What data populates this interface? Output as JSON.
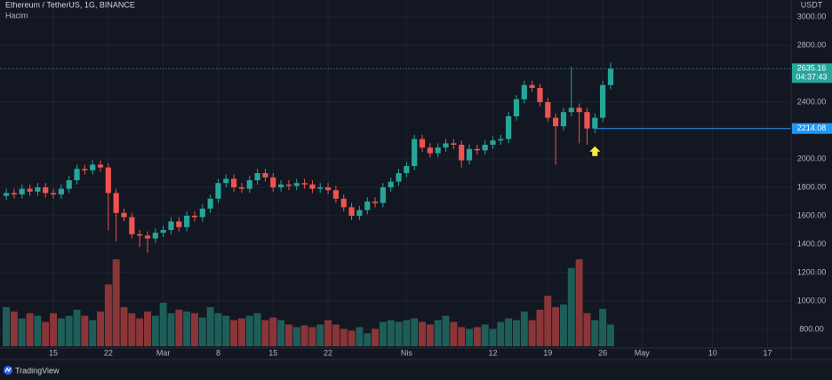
{
  "chart_data": {
    "type": "candlestick",
    "title": "Ethereum / TetherUS, 1G, BINANCE",
    "volume_label": "Hacim",
    "currency": "USDT",
    "brand": "TradingView",
    "up_color": "#26a69a",
    "down_color": "#ef5350",
    "volume_up_color": "#1e5e59",
    "volume_down_color": "#8a3538",
    "grid": true,
    "open": [
      1740,
      1760,
      1750,
      1790,
      1770,
      1800,
      1760,
      1750,
      1790,
      1850,
      1930,
      1920,
      1960,
      1940,
      1760,
      1620,
      1590,
      1470,
      1460,
      1440,
      1480,
      1500,
      1560,
      1520,
      1600,
      1590,
      1650,
      1720,
      1830,
      1860,
      1800,
      1790,
      1850,
      1900,
      1870,
      1800,
      1820,
      1810,
      1830,
      1820,
      1790,
      1800,
      1780,
      1720,
      1660,
      1600,
      1640,
      1700,
      1690,
      1800,
      1840,
      1900,
      1950,
      2140,
      2080,
      2040,
      2080,
      2110,
      2100,
      1990,
      2070,
      2060,
      2100,
      2130,
      2140,
      2300,
      2420,
      2520,
      2500,
      2400,
      2290,
      2230,
      2330,
      2360,
      2330,
      2214.08,
      2290,
      2520
    ],
    "high": [
      1790,
      1790,
      1820,
      1820,
      1830,
      1830,
      1790,
      1820,
      1880,
      1960,
      1960,
      1990,
      1990,
      1970,
      1790,
      1650,
      1620,
      1500,
      1490,
      1510,
      1530,
      1590,
      1590,
      1630,
      1630,
      1680,
      1750,
      1860,
      1890,
      1890,
      1830,
      1880,
      1930,
      1930,
      1900,
      1850,
      1850,
      1860,
      1860,
      1850,
      1830,
      1830,
      1810,
      1750,
      1690,
      1670,
      1730,
      1730,
      1830,
      1870,
      1930,
      1980,
      2170,
      2170,
      2110,
      2110,
      2140,
      2140,
      2130,
      2100,
      2100,
      2130,
      2160,
      2170,
      2330,
      2450,
      2550,
      2550,
      2530,
      2430,
      2320,
      2360,
      2650,
      2390,
      2360,
      2320,
      2550,
      2680
    ],
    "low": [
      1710,
      1720,
      1720,
      1740,
      1740,
      1730,
      1720,
      1720,
      1760,
      1820,
      1890,
      1890,
      1910,
      1500,
      1420,
      1560,
      1440,
      1380,
      1340,
      1410,
      1450,
      1470,
      1490,
      1490,
      1560,
      1560,
      1620,
      1690,
      1800,
      1770,
      1760,
      1760,
      1820,
      1840,
      1770,
      1770,
      1780,
      1780,
      1790,
      1760,
      1760,
      1750,
      1690,
      1630,
      1570,
      1570,
      1610,
      1660,
      1660,
      1770,
      1810,
      1870,
      1920,
      2050,
      2010,
      2010,
      2050,
      2070,
      1940,
      1960,
      2030,
      2030,
      2070,
      2100,
      2110,
      2270,
      2390,
      2470,
      2370,
      2260,
      1960,
      2200,
      2300,
      2110,
      2100,
      2180,
      2260,
      2490
    ],
    "close": [
      1760,
      1750,
      1790,
      1770,
      1800,
      1760,
      1750,
      1790,
      1850,
      1930,
      1920,
      1960,
      1940,
      1760,
      1620,
      1590,
      1470,
      1460,
      1440,
      1480,
      1500,
      1560,
      1520,
      1600,
      1590,
      1650,
      1720,
      1830,
      1860,
      1800,
      1790,
      1850,
      1900,
      1870,
      1800,
      1820,
      1810,
      1830,
      1820,
      1790,
      1800,
      1780,
      1720,
      1660,
      1600,
      1640,
      1700,
      1690,
      1800,
      1840,
      1900,
      1950,
      2140,
      2080,
      2040,
      2080,
      2110,
      2100,
      1990,
      2070,
      2060,
      2100,
      2130,
      2140,
      2300,
      2420,
      2520,
      2500,
      2400,
      2290,
      2230,
      2330,
      2360,
      2330,
      2214.08,
      2290,
      2520,
      2635.16
    ],
    "volume": [
      45,
      40,
      32,
      38,
      35,
      28,
      38,
      32,
      35,
      42,
      35,
      30,
      40,
      71,
      100,
      45,
      38,
      32,
      40,
      35,
      50,
      38,
      42,
      40,
      38,
      33,
      45,
      38,
      35,
      30,
      32,
      35,
      38,
      30,
      33,
      30,
      25,
      22,
      24,
      22,
      25,
      30,
      25,
      20,
      18,
      22,
      15,
      20,
      28,
      30,
      28,
      30,
      32,
      28,
      25,
      30,
      35,
      28,
      22,
      20,
      22,
      25,
      20,
      28,
      32,
      30,
      40,
      30,
      42,
      58,
      45,
      48,
      90,
      100,
      38,
      30,
      43,
      25
    ],
    "vlim": [
      0,
      100
    ],
    "xlim": [
      -0.8,
      100
    ],
    "ylim": [
      668.75,
      3118.75
    ],
    "yticks": [
      {
        "value": 800,
        "label": "800.00"
      },
      {
        "value": 1000,
        "label": "1000.00"
      },
      {
        "value": 1200,
        "label": "1200.00"
      },
      {
        "value": 1400,
        "label": "1400.00"
      },
      {
        "value": 1600,
        "label": "1600.00"
      },
      {
        "value": 1800,
        "label": "1800.00"
      },
      {
        "value": 2000,
        "label": "2000.00"
      },
      {
        "value": 2400,
        "label": "2400.00"
      },
      {
        "value": 2800,
        "label": "2800.00"
      },
      {
        "value": 3000,
        "label": "3000.00"
      }
    ],
    "xticks": [
      {
        "value": 6,
        "label": "15"
      },
      {
        "value": 13,
        "label": "22"
      },
      {
        "value": 20,
        "label": "Mar"
      },
      {
        "value": 27,
        "label": "8"
      },
      {
        "value": 34,
        "label": "15"
      },
      {
        "value": 41,
        "label": "22"
      },
      {
        "value": 51,
        "label": "Nis"
      },
      {
        "value": 62,
        "label": "12"
      },
      {
        "value": 69,
        "label": "19"
      },
      {
        "value": 76,
        "label": "26"
      },
      {
        "value": 81,
        "label": "May"
      },
      {
        "value": 90,
        "label": "10"
      },
      {
        "value": 97,
        "label": "17"
      }
    ],
    "last_price": 2635.16,
    "countdown": "04:37:43",
    "level": 2214.08
  }
}
